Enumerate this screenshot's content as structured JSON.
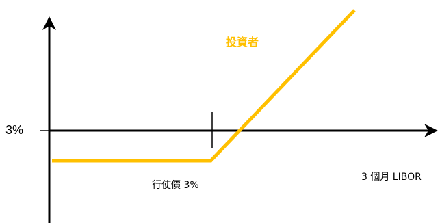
{
  "diagram": {
    "y_marker_label": "3%",
    "x_axis_label": "3 個月 LIBOR",
    "strike_label": "行使價 3%",
    "series_label": "投資者",
    "colors": {
      "axis": "#000000",
      "payoff_line": "#FFC000",
      "series_label": "#FFC000",
      "background": "#FFFFFF"
    }
  }
}
